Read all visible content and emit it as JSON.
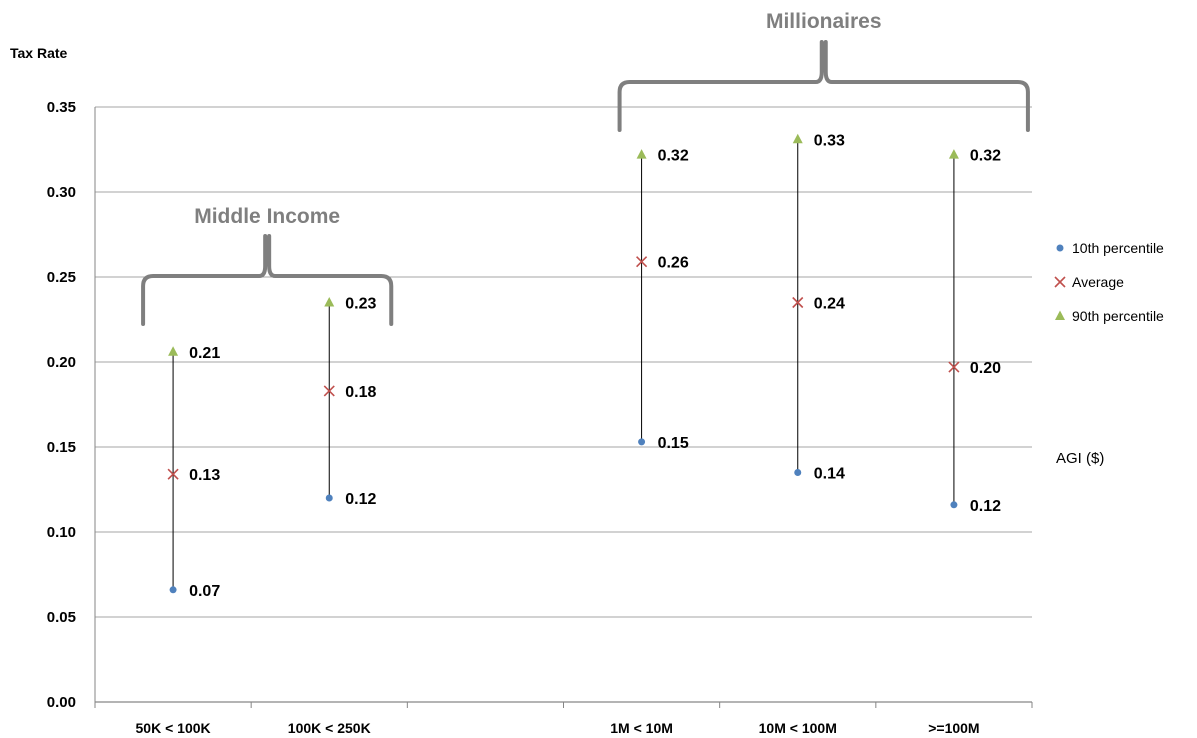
{
  "chart_data": {
    "type": "scatter",
    "ylabel": "Tax Rate",
    "xlabel": "AGI ($)",
    "ylim": [
      0,
      0.35
    ],
    "yticks": [
      "0.00",
      "0.05",
      "0.10",
      "0.15",
      "0.20",
      "0.25",
      "0.30",
      "0.35"
    ],
    "grid": true,
    "legend_position": "right",
    "categories": [
      "50K < 100K",
      "100K < 250K",
      "",
      "1M < 10M",
      "10M < 100M",
      ">=100M"
    ],
    "series": [
      {
        "name": "10th percentile",
        "marker": "circle",
        "color": "#4f81bd",
        "values": [
          0.066,
          0.12,
          null,
          0.153,
          0.135,
          0.116
        ],
        "labels": [
          "0.07",
          "0.12",
          "",
          "0.15",
          "0.14",
          "0.12"
        ]
      },
      {
        "name": "Average",
        "marker": "x",
        "color": "#c0504d",
        "values": [
          0.134,
          0.183,
          null,
          0.259,
          0.235,
          0.197
        ],
        "labels": [
          "0.13",
          "0.18",
          "",
          "0.26",
          "0.24",
          "0.20"
        ]
      },
      {
        "name": "90th percentile",
        "marker": "triangle",
        "color": "#9bbb59",
        "values": [
          0.206,
          0.235,
          null,
          0.322,
          0.331,
          0.322
        ],
        "labels": [
          "0.21",
          "0.23",
          "",
          "0.32",
          "0.33",
          "0.32"
        ]
      }
    ],
    "annotations": [
      {
        "text": "Middle Income",
        "spans": [
          0,
          1
        ]
      },
      {
        "text": "Millionaires",
        "spans": [
          3,
          5
        ]
      }
    ]
  }
}
